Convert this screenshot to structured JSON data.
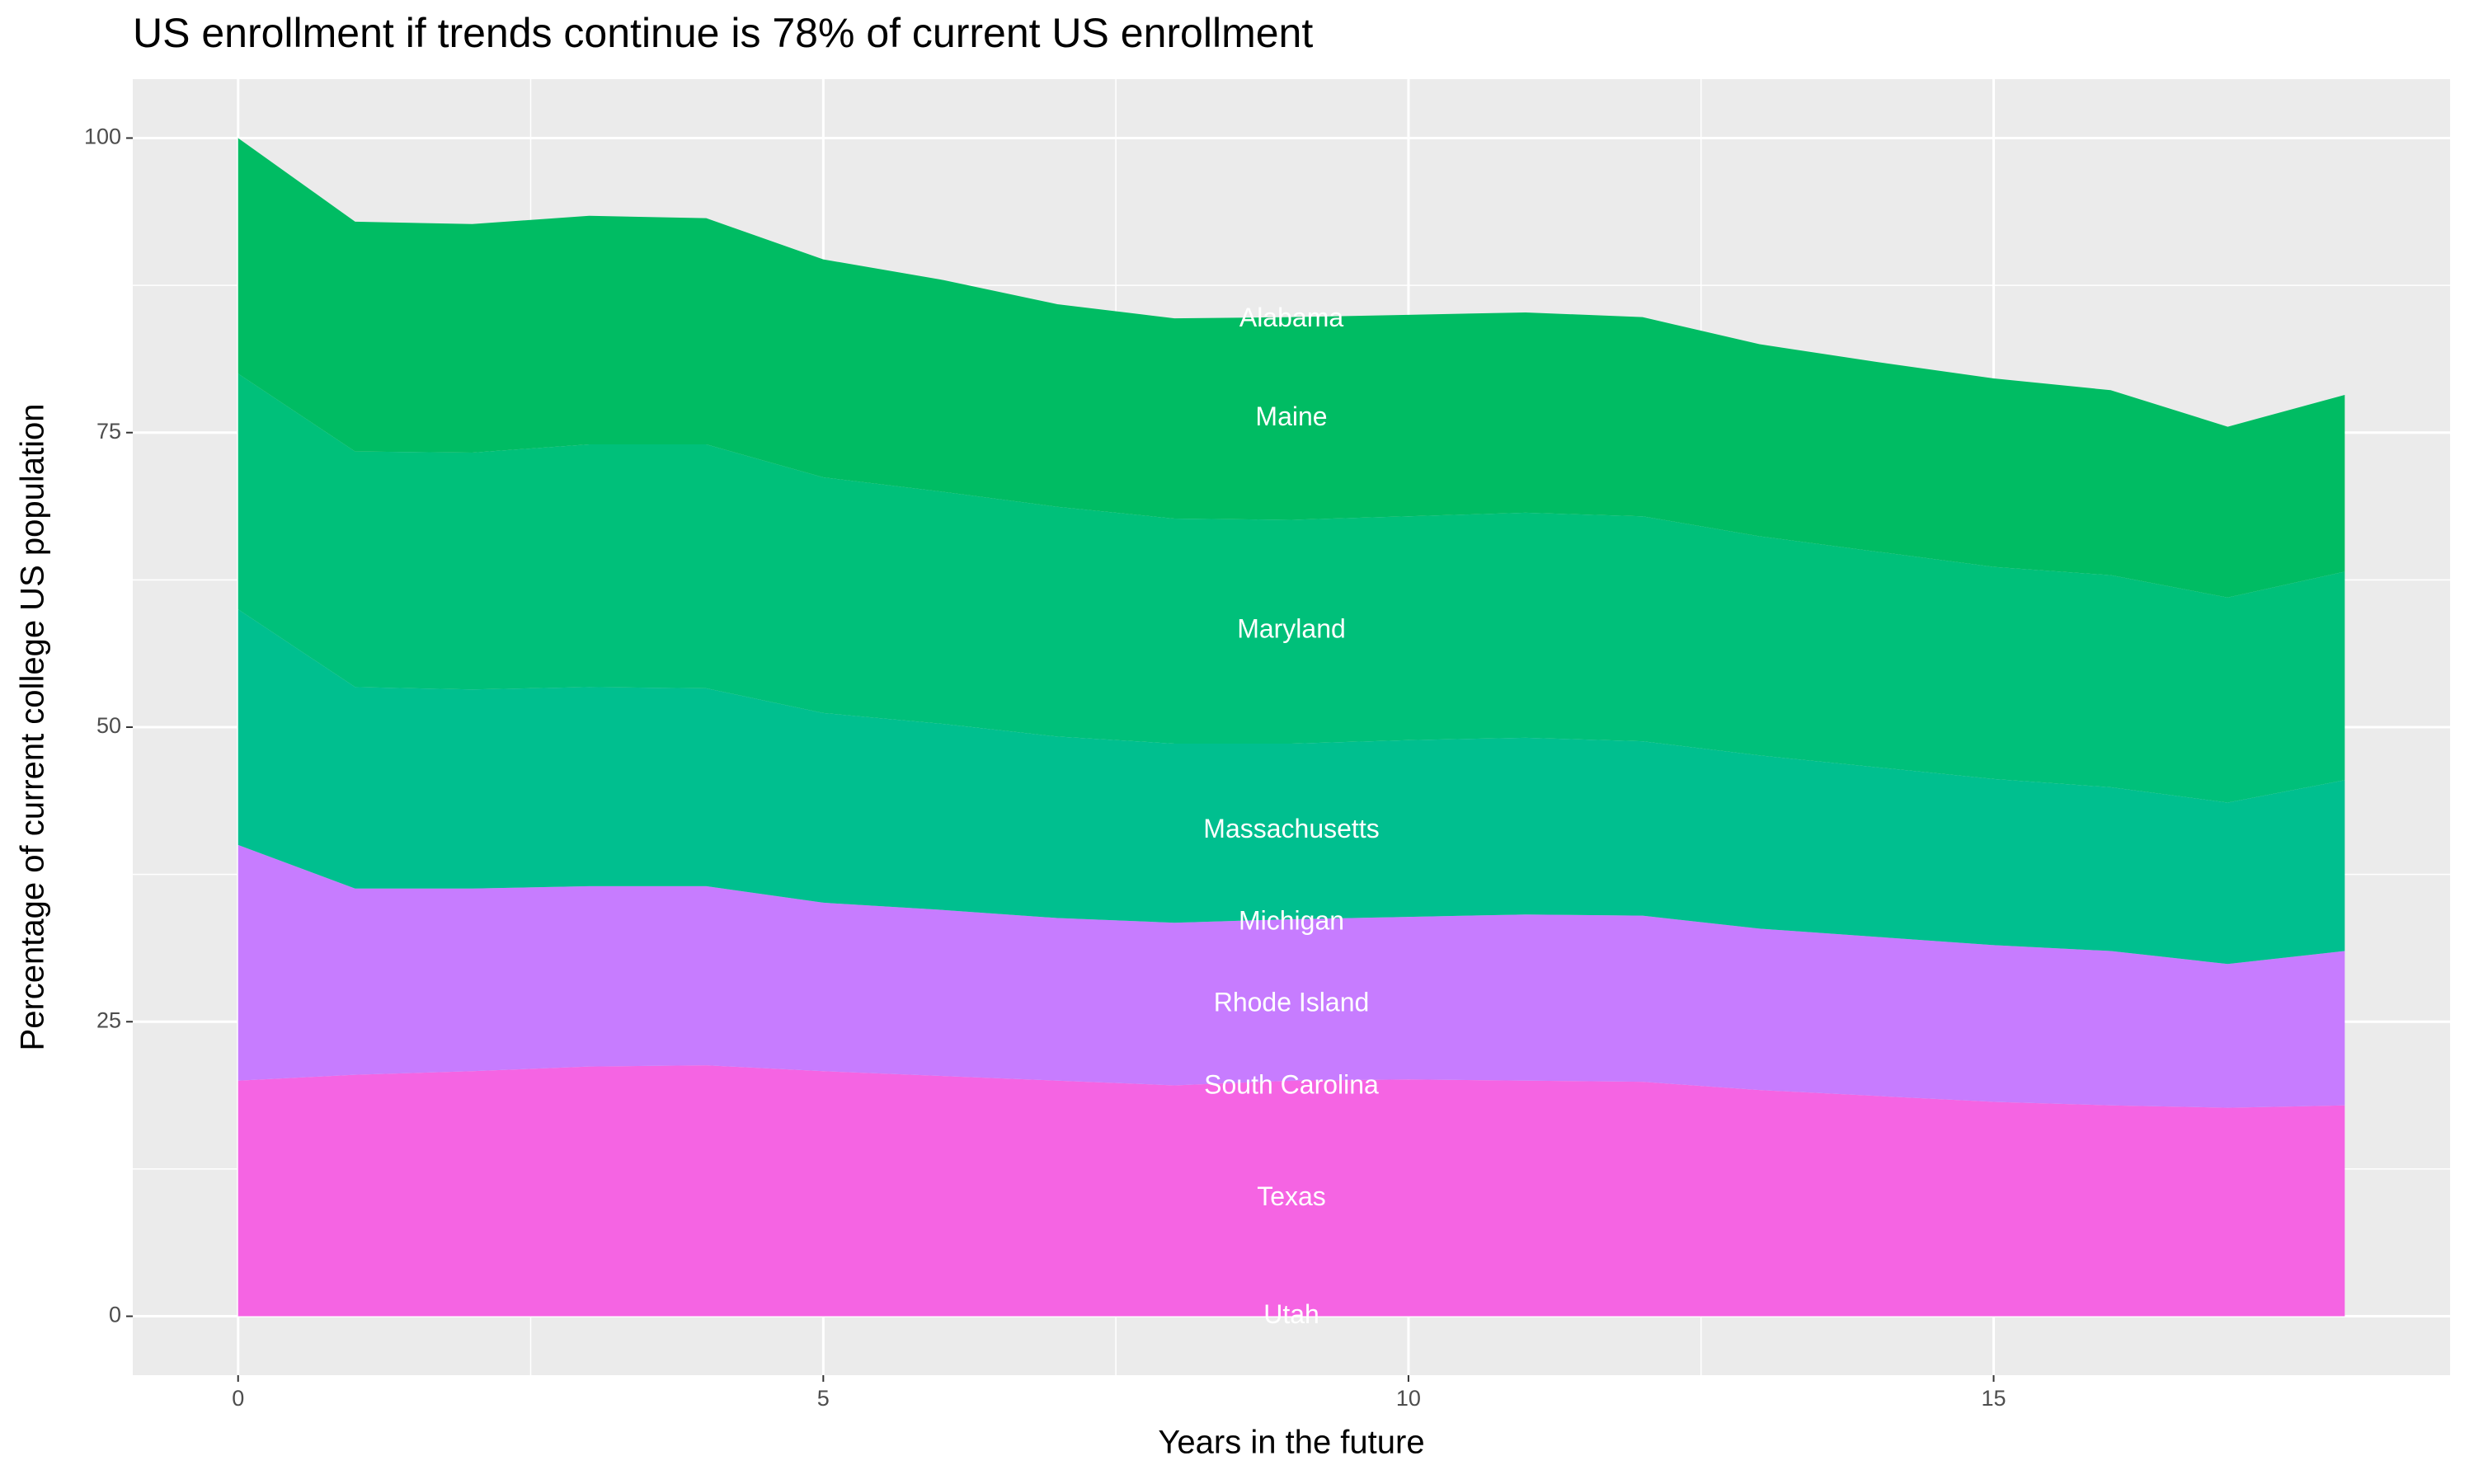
{
  "chart_data": {
    "type": "stacked_area",
    "title": "US enrollment if trends continue is 78% of current US enrollment",
    "x_label": "Years in the future",
    "y_label": "Percentage of current college US population",
    "x": [
      0,
      1,
      2,
      3,
      4,
      5,
      6,
      7,
      8,
      9,
      10,
      11,
      12,
      13,
      14,
      15,
      16,
      17,
      18
    ],
    "series": [
      {
        "color": "#F564E3",
        "values": [
          20,
          20.5,
          20.8,
          21.2,
          21.3,
          20.8,
          20.4,
          20,
          19.6,
          20,
          20.1,
          20,
          19.9,
          19.2,
          18.7,
          18.2,
          17.9,
          17.7,
          17.9
        ]
      },
      {
        "color": "#C77CFF",
        "values": [
          20,
          15.8,
          15.5,
          15.3,
          15.2,
          14.3,
          14.1,
          13.8,
          13.8,
          13.7,
          13.8,
          14.1,
          14.1,
          13.7,
          13.5,
          13.3,
          13.1,
          12.2,
          13.1
        ]
      },
      {
        "color": "#00BF8F",
        "values": [
          20,
          17.1,
          16.9,
          16.9,
          16.8,
          16.1,
          15.8,
          15.4,
          15.2,
          14.9,
          15,
          15,
          14.8,
          14.7,
          14.4,
          14.1,
          13.9,
          13.7,
          14.5
        ]
      },
      {
        "color": "#00C07A",
        "values": [
          20,
          20,
          20.1,
          20.6,
          20.7,
          20,
          19.7,
          19.5,
          19.1,
          19,
          19,
          19.1,
          19.1,
          18.6,
          18.3,
          18,
          18,
          17.4,
          17.7
        ]
      },
      {
        "color": "#00BC63",
        "values": [
          20,
          19.5,
          19.4,
          19.4,
          19.2,
          18.5,
          18,
          17.2,
          17,
          17.2,
          17.1,
          17,
          16.9,
          16.3,
          16.1,
          16,
          15.7,
          14.5,
          15
        ]
      }
    ],
    "annotations": [
      {
        "text": "Utah",
        "x": 9,
        "y": 0
      },
      {
        "text": "Texas",
        "x": 9,
        "y": 10
      },
      {
        "text": "South Carolina",
        "x": 9,
        "y": 19.5
      },
      {
        "text": "Rhode Island",
        "x": 9,
        "y": 26.5
      },
      {
        "text": "Michigan",
        "x": 9,
        "y": 33.4
      },
      {
        "text": "Massachusetts",
        "x": 9,
        "y": 41.2
      },
      {
        "text": "Maryland",
        "x": 9,
        "y": 58.2
      },
      {
        "text": "Maine",
        "x": 9,
        "y": 76.2
      },
      {
        "text": "Alabama",
        "x": 9,
        "y": 84.6
      }
    ],
    "xlim": [
      -0.9,
      18.9
    ],
    "ylim": [
      -5,
      105
    ],
    "xticks": [
      0,
      5,
      10,
      15
    ],
    "yticks": [
      0,
      25,
      50,
      75,
      100
    ],
    "grid": true
  }
}
